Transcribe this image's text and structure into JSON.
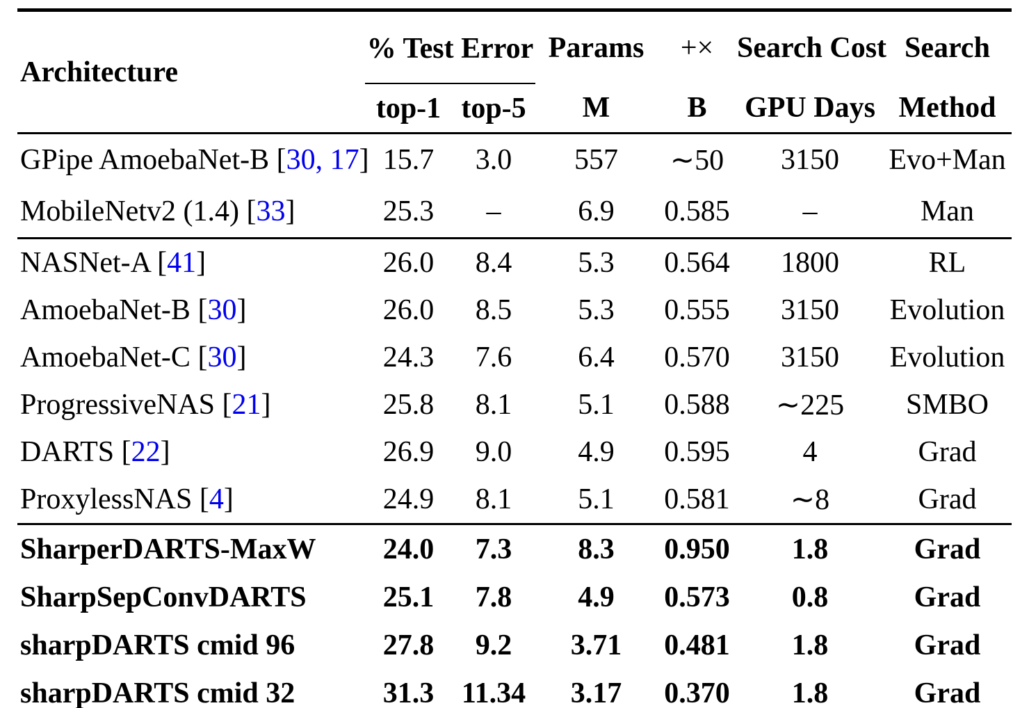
{
  "table": {
    "colors": {
      "citation_link": "#0000EE",
      "text": "#000000"
    },
    "header": {
      "architecture": "Architecture",
      "test_error_group": "% Test Error",
      "top1": "top-1",
      "top5": "top-5",
      "params_line1": "Params",
      "params_line2": "M",
      "ops_line1": "+×",
      "ops_line2": "B",
      "cost_line1": "Search Cost",
      "cost_line2": "GPU Days",
      "method_line1": "Search",
      "method_line2": "Method"
    },
    "rows": [
      {
        "name": "GPipe AmoebaNet-B ",
        "open": "[",
        "cites": "30, 17",
        "close": "]",
        "top1": "15.7",
        "top5": "3.0",
        "params": "557",
        "ops": "∼50",
        "cost": "3150",
        "method": "Evo+Man"
      },
      {
        "name": "MobileNetv2 (1.4) ",
        "open": "[",
        "cites": "33",
        "close": "]",
        "top1": "25.3",
        "top5": "–",
        "params": "6.9",
        "ops": "0.585",
        "cost": "–",
        "method": "Man"
      },
      {
        "name": "NASNet-A ",
        "open": "[",
        "cites": "41",
        "close": "]",
        "top1": "26.0",
        "top5": "8.4",
        "params": "5.3",
        "ops": "0.564",
        "cost": "1800",
        "method": "RL"
      },
      {
        "name": "AmoebaNet-B ",
        "open": "[",
        "cites": "30",
        "close": "]",
        "top1": "26.0",
        "top5": "8.5",
        "params": "5.3",
        "ops": "0.555",
        "cost": "3150",
        "method": "Evolution"
      },
      {
        "name": "AmoebaNet-C ",
        "open": "[",
        "cites": "30",
        "close": "]",
        "top1": "24.3",
        "top5": "7.6",
        "params": "6.4",
        "ops": "0.570",
        "cost": "3150",
        "method": "Evolution"
      },
      {
        "name": "ProgressiveNAS ",
        "open": "[",
        "cites": "21",
        "close": "]",
        "top1": "25.8",
        "top5": "8.1",
        "params": "5.1",
        "ops": "0.588",
        "cost": "∼225",
        "method": "SMBO"
      },
      {
        "name": "DARTS ",
        "open": "[",
        "cites": "22",
        "close": "]",
        "top1": "26.9",
        "top5": "9.0",
        "params": "4.9",
        "ops": "0.595",
        "cost": "4",
        "method": "Grad"
      },
      {
        "name": "ProxylessNAS ",
        "open": "[",
        "cites": "4",
        "close": "]",
        "top1": "24.9",
        "top5": "8.1",
        "params": "5.1",
        "ops": "0.581",
        "cost": "∼8",
        "method": "Grad"
      },
      {
        "name": "SharperDARTS-MaxW",
        "open": "",
        "cites": "",
        "close": "",
        "top1": "24.0",
        "top5": "7.3",
        "params": "8.3",
        "ops": "0.950",
        "cost": "1.8",
        "method": "Grad"
      },
      {
        "name": "SharpSepConvDARTS",
        "open": "",
        "cites": "",
        "close": "",
        "top1": "25.1",
        "top5": "7.8",
        "params": "4.9",
        "ops": "0.573",
        "cost": "0.8",
        "method": "Grad"
      },
      {
        "name": "sharpDARTS cmid 96",
        "open": "",
        "cites": "",
        "close": "",
        "top1": "27.8",
        "top5": "9.2",
        "params": "3.71",
        "ops": "0.481",
        "cost": "1.8",
        "method": "Grad"
      },
      {
        "name": "sharpDARTS cmid 32",
        "open": "",
        "cites": "",
        "close": "",
        "top1": "31.3",
        "top5": "11.34",
        "params": "3.17",
        "ops": "0.370",
        "cost": "1.8",
        "method": "Grad"
      }
    ]
  }
}
